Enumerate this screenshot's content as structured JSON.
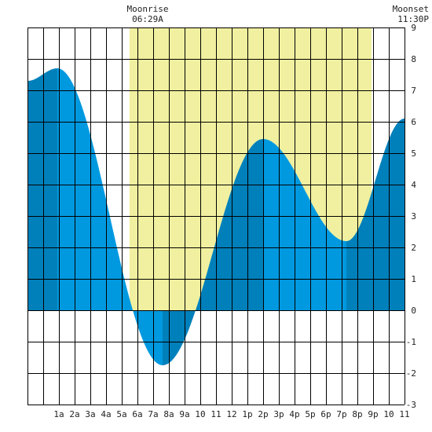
{
  "chart_data": {
    "type": "area",
    "moonrise": {
      "label": "Moonrise",
      "time": "06:29A"
    },
    "moonset": {
      "label": "Moonset",
      "time": "11:30P"
    },
    "daylight_hours": [
      5.5,
      20.9
    ],
    "xlim": [
      -1,
      23
    ],
    "ylim": [
      -3,
      9
    ],
    "grid": true,
    "x_ticks": [
      {
        "hour": 1,
        "label": "1a"
      },
      {
        "hour": 2,
        "label": "2a"
      },
      {
        "hour": 3,
        "label": "3a"
      },
      {
        "hour": 4,
        "label": "4a"
      },
      {
        "hour": 5,
        "label": "5a"
      },
      {
        "hour": 6,
        "label": "6a"
      },
      {
        "hour": 7,
        "label": "7a"
      },
      {
        "hour": 8,
        "label": "8a"
      },
      {
        "hour": 9,
        "label": "9a"
      },
      {
        "hour": 10,
        "label": "10"
      },
      {
        "hour": 11,
        "label": "11"
      },
      {
        "hour": 12,
        "label": "12"
      },
      {
        "hour": 13,
        "label": "1p"
      },
      {
        "hour": 14,
        "label": "2p"
      },
      {
        "hour": 15,
        "label": "3p"
      },
      {
        "hour": 16,
        "label": "4p"
      },
      {
        "hour": 17,
        "label": "5p"
      },
      {
        "hour": 18,
        "label": "6p"
      },
      {
        "hour": 19,
        "label": "7p"
      },
      {
        "hour": 20,
        "label": "8p"
      },
      {
        "hour": 21,
        "label": "9p"
      },
      {
        "hour": 22,
        "label": "10"
      },
      {
        "hour": 23,
        "label": "11"
      }
    ],
    "y_ticks": [
      9,
      8,
      7,
      6,
      5,
      4,
      3,
      2,
      1,
      0,
      -1,
      -2,
      -3
    ],
    "extremes": [
      {
        "hour": 0.9,
        "height": 7.7,
        "kind": "high"
      },
      {
        "hour": 7.6,
        "height": -1.75,
        "kind": "low"
      },
      {
        "hour": 14.0,
        "height": 5.45,
        "kind": "high"
      },
      {
        "hour": 19.3,
        "height": 2.2,
        "kind": "low"
      }
    ],
    "start": {
      "hour": -1,
      "height": 7.3
    },
    "end": {
      "hour": 23,
      "height": 6.1
    },
    "colors": {
      "daylight": "#f0f0a0",
      "tide": "#0099e0",
      "tide_dark": "#0080bb",
      "grid": "#000000"
    }
  }
}
